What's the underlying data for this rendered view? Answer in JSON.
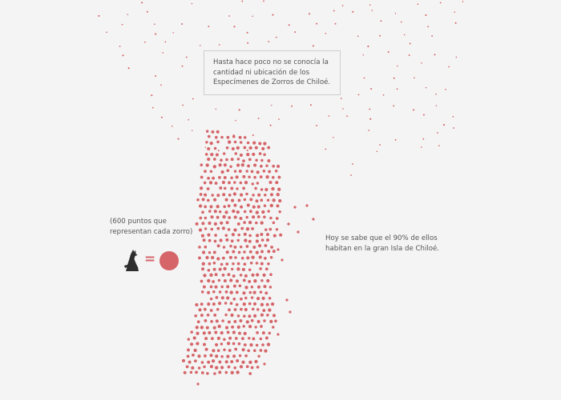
{
  "intro_text": "Hasta hace poco no se conocía la cantidad ni ubicación de los Especímenes de Zorros de Chiloé.",
  "legend_text": "(600 puntos que representan cada zorro)",
  "legend_equals": "=",
  "fact_text": "Hoy se sabe que el 90% de ellos habitan en la gran Isla de Chiloé.",
  "icons": [
    "fox-icon",
    "dot-icon"
  ],
  "colors": {
    "dot": "#d56569",
    "background": "#f4f4f4",
    "text": "#555555"
  }
}
